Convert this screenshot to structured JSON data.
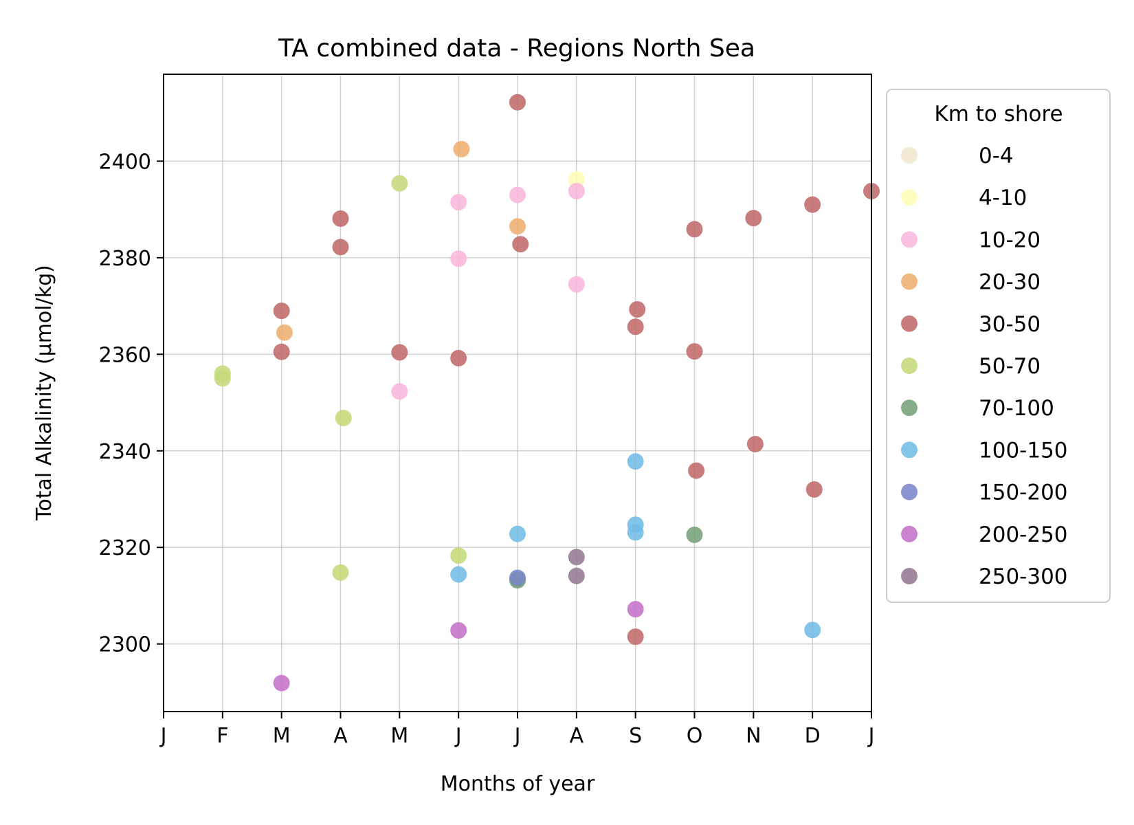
{
  "chart_data": {
    "type": "scatter",
    "title": "TA combined data - Regions North Sea",
    "xlabel": "Months of year",
    "ylabel": "Total Alkalinity (μmol/kg)",
    "xlim": [
      1,
      13
    ],
    "ylim": [
      2286,
      2418
    ],
    "x_ticks": [
      {
        "value": 1,
        "label": "J"
      },
      {
        "value": 2,
        "label": "F"
      },
      {
        "value": 3,
        "label": "M"
      },
      {
        "value": 4,
        "label": "A"
      },
      {
        "value": 5,
        "label": "M"
      },
      {
        "value": 6,
        "label": "J"
      },
      {
        "value": 7,
        "label": "J"
      },
      {
        "value": 8,
        "label": "A"
      },
      {
        "value": 9,
        "label": "S"
      },
      {
        "value": 10,
        "label": "O"
      },
      {
        "value": 11,
        "label": "N"
      },
      {
        "value": 12,
        "label": "D"
      },
      {
        "value": 13,
        "label": "J"
      }
    ],
    "y_ticks": [
      2300,
      2320,
      2340,
      2360,
      2380,
      2400
    ],
    "grid": true,
    "legend": {
      "title": "Km to shore",
      "placement": "outside-right"
    },
    "series": [
      {
        "name": "0-4",
        "color": "#efe6cd",
        "points": []
      },
      {
        "name": "4-10",
        "color": "#fdfdb6",
        "points": [
          [
            8.0,
            2396.2
          ]
        ]
      },
      {
        "name": "10-20",
        "color": "#fbb6dc",
        "points": [
          [
            6.0,
            2391.5
          ],
          [
            6.0,
            2379.8
          ],
          [
            7.0,
            2393.0
          ],
          [
            8.0,
            2393.8
          ],
          [
            8.0,
            2374.5
          ],
          [
            5.0,
            2352.3
          ]
        ]
      },
      {
        "name": "20-30",
        "color": "#eeaf70",
        "points": [
          [
            6.05,
            2402.5
          ],
          [
            7.0,
            2386.5
          ],
          [
            3.05,
            2364.5
          ]
        ]
      },
      {
        "name": "30-50",
        "color": "#c06a6a",
        "points": [
          [
            7.0,
            2412.2
          ],
          [
            4.0,
            2388.1
          ],
          [
            4.0,
            2382.2
          ],
          [
            7.05,
            2382.8
          ],
          [
            3.0,
            2369.0
          ],
          [
            3.0,
            2360.5
          ],
          [
            5.0,
            2360.4
          ],
          [
            6.0,
            2359.2
          ],
          [
            9.03,
            2369.3
          ],
          [
            9.0,
            2365.7
          ],
          [
            10.0,
            2385.9
          ],
          [
            10.0,
            2360.6
          ],
          [
            11.0,
            2388.2
          ],
          [
            12.0,
            2391.0
          ],
          [
            13.0,
            2393.8
          ],
          [
            10.03,
            2335.9
          ],
          [
            11.03,
            2341.4
          ],
          [
            12.03,
            2332.0
          ],
          [
            9.0,
            2301.5
          ]
        ]
      },
      {
        "name": "50-70",
        "color": "#c4d97a",
        "points": [
          [
            5.0,
            2395.4
          ],
          [
            4.05,
            2346.8
          ],
          [
            4.0,
            2314.8
          ],
          [
            6.0,
            2318.3
          ],
          [
            2.0,
            2356.0
          ],
          [
            2.0,
            2355.0
          ],
          [
            7.0,
            2313.4
          ]
        ]
      },
      {
        "name": "70-100",
        "color": "#76a07a",
        "points": [
          [
            10.0,
            2322.6
          ],
          [
            7.0,
            2313.2
          ]
        ]
      },
      {
        "name": "100-150",
        "color": "#72bce6",
        "points": [
          [
            9.0,
            2337.8
          ],
          [
            9.0,
            2324.7
          ],
          [
            9.0,
            2323.1
          ],
          [
            7.0,
            2322.8
          ],
          [
            6.0,
            2314.4
          ],
          [
            12.0,
            2302.9
          ]
        ]
      },
      {
        "name": "150-200",
        "color": "#7b86c8",
        "points": [
          [
            7.0,
            2313.7
          ]
        ]
      },
      {
        "name": "200-250",
        "color": "#c472c8",
        "points": [
          [
            3.0,
            2291.9
          ],
          [
            6.0,
            2302.8
          ],
          [
            9.0,
            2307.2
          ]
        ]
      },
      {
        "name": "250-300",
        "color": "#947a92",
        "points": [
          [
            8.0,
            2318.0
          ],
          [
            8.0,
            2314.1
          ]
        ]
      }
    ]
  }
}
